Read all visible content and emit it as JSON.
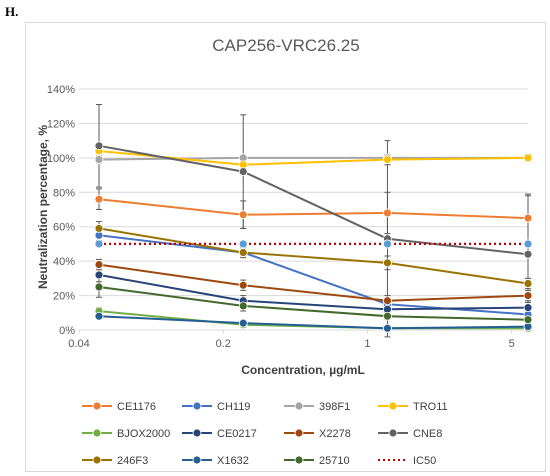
{
  "panel_label": "H.",
  "chart_data": {
    "type": "line",
    "title": "CAP256-VRC26.25",
    "xlabel": "Concentration, µg/mL",
    "ylabel": "Neutralization percentage, %",
    "x_scale": "log",
    "xlim": [
      0.04,
      6
    ],
    "ylim": [
      0,
      140
    ],
    "x_ticks": [
      0.04,
      0.2,
      1,
      5
    ],
    "x_tick_labels": [
      "0.04",
      "0.2",
      "1",
      "5"
    ],
    "y_ticks": [
      0,
      20,
      40,
      60,
      80,
      100,
      120,
      140
    ],
    "y_tick_labels": [
      "0%",
      "20%",
      "40%",
      "60%",
      "80%",
      "100%",
      "120%",
      "140%"
    ],
    "grid": "horizontal",
    "legend_position": "bottom",
    "x": [
      0.05,
      0.25,
      1.25,
      6.0
    ],
    "series": [
      {
        "name": "CE1176",
        "color": "#ed7d31",
        "values": [
          76,
          67,
          68,
          65
        ],
        "errors": [
          6,
          8,
          12,
          14
        ]
      },
      {
        "name": "CH119",
        "color": "#4472c4",
        "values": [
          55,
          45,
          15,
          9
        ],
        "errors": [
          3,
          2,
          3,
          2
        ]
      },
      {
        "name": "398F1",
        "color": "#a5a5a5",
        "values": [
          99,
          100,
          100,
          100
        ],
        "errors": [
          2,
          1,
          2,
          1
        ]
      },
      {
        "name": "TRO11",
        "color": "#ffc000",
        "values": [
          104,
          96,
          99,
          100
        ],
        "errors": [
          3,
          2,
          3,
          2
        ]
      },
      {
        "name": "BJOX2000",
        "color": "#70ad47",
        "values": [
          11,
          3,
          1,
          1
        ],
        "errors": [
          2,
          1,
          1,
          1
        ]
      },
      {
        "name": "CE0217",
        "color": "#264478",
        "values": [
          32,
          17,
          12,
          13
        ],
        "errors": [
          4,
          3,
          2,
          3
        ]
      },
      {
        "name": "X2278",
        "color": "#9e480e",
        "values": [
          38,
          26,
          17,
          20
        ],
        "errors": [
          3,
          3,
          3,
          3
        ]
      },
      {
        "name": "CNE8",
        "color": "#636363",
        "values": [
          107,
          92,
          53,
          44
        ],
        "errors": [
          24,
          33,
          57,
          34
        ]
      },
      {
        "name": "246F3",
        "color": "#997300",
        "values": [
          59,
          45,
          39,
          27
        ],
        "errors": [
          4,
          3,
          4,
          3
        ]
      },
      {
        "name": "X1632",
        "color": "#255e91",
        "values": [
          8,
          4,
          1,
          2
        ],
        "errors": [
          1,
          1,
          1,
          1
        ]
      },
      {
        "name": "25710",
        "color": "#43682b",
        "values": [
          25,
          14,
          8,
          6
        ],
        "errors": [
          6,
          3,
          2,
          2
        ]
      },
      {
        "name": "IC50",
        "color": "#c00000",
        "values": [
          50,
          50,
          50,
          50
        ],
        "dashed": true
      }
    ]
  }
}
